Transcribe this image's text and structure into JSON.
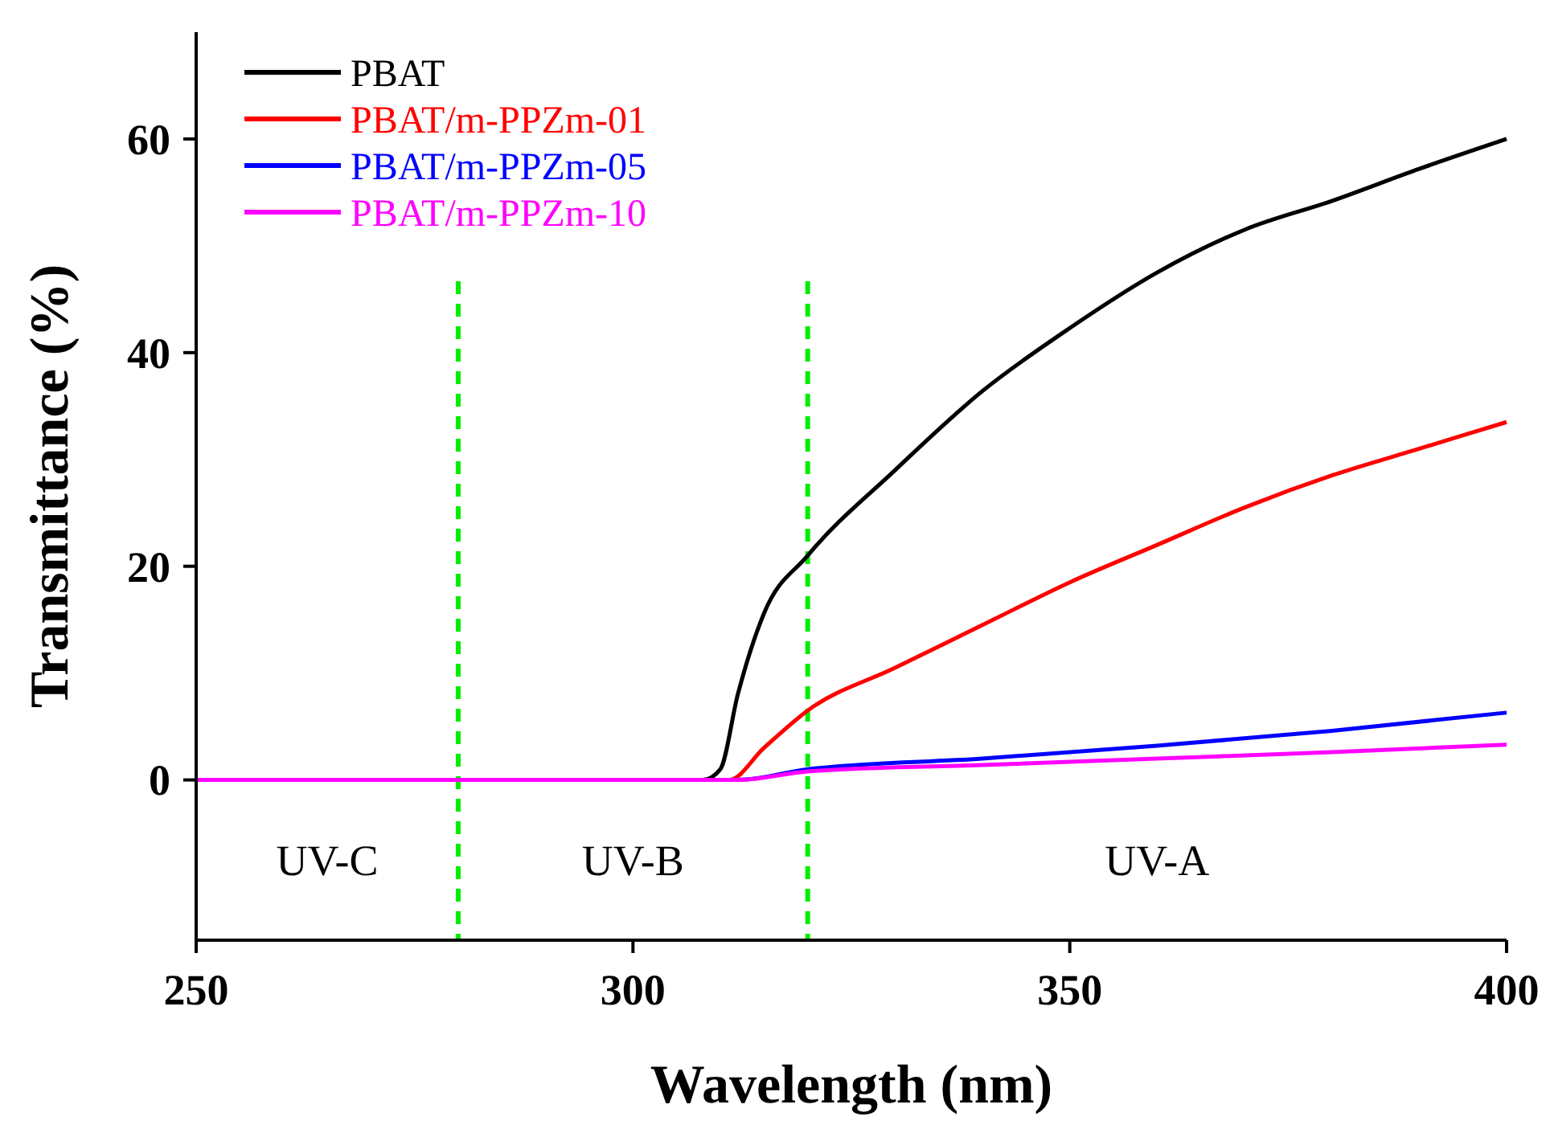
{
  "chart_data": {
    "type": "line",
    "xlabel": "Wavelength (nm)",
    "ylabel": "Transmittance (%)",
    "xlim": [
      250,
      400
    ],
    "ylim": [
      -15,
      70
    ],
    "xticks": [
      250,
      300,
      350,
      400
    ],
    "yticks": [
      0,
      20,
      40,
      60
    ],
    "legend": "top left",
    "grid": false,
    "marker": "none",
    "line_style": "solid",
    "series": [
      {
        "name": "PBAT",
        "color": "#000000",
        "x": [
          250,
          280,
          300,
          308,
          310,
          312,
          315,
          320,
          330,
          340,
          350,
          360,
          370,
          380,
          390,
          400
        ],
        "values": [
          0,
          0,
          0,
          0,
          1,
          8,
          15.6,
          21,
          29,
          36.4,
          42.3,
          47.5,
          51.5,
          54.2,
          57.2,
          60
        ]
      },
      {
        "name": "PBAT/m-PPZm-01",
        "color": "#ff0000",
        "x": [
          300,
          311,
          315,
          320,
          330,
          340,
          350,
          360,
          370,
          380,
          390,
          400
        ],
        "values": [
          0,
          0,
          3,
          6.5,
          10.5,
          14.5,
          18.5,
          22,
          25.5,
          28.5,
          31,
          33.5
        ]
      },
      {
        "name": "PBAT/m-PPZm-05",
        "color": "#0000ff",
        "x": [
          300,
          312,
          320,
          340,
          360,
          380,
          400
        ],
        "values": [
          0,
          0,
          1,
          2,
          3.2,
          4.6,
          6.3
        ]
      },
      {
        "name": "PBAT/m-PPZm-10",
        "color": "#ff00ff",
        "x": [
          250,
          280,
          300,
          312,
          320,
          340,
          360,
          380,
          400
        ],
        "values": [
          0,
          0,
          0,
          0,
          0.8,
          1.4,
          2,
          2.6,
          3.3
        ]
      }
    ],
    "ref_lines": [
      {
        "axis": "x",
        "value": 280,
        "color": "#00ee00",
        "line_style": "dashed"
      },
      {
        "axis": "x",
        "value": 320,
        "color": "#00ee00",
        "line_style": "dashed"
      }
    ],
    "annotations": [
      "UV-C",
      "UV-B",
      "UV-A"
    ]
  }
}
